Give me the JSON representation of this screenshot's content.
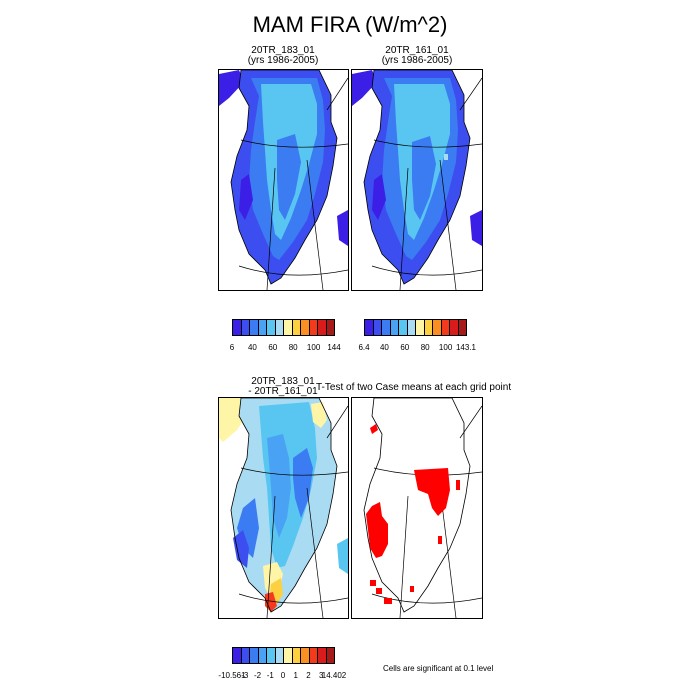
{
  "figure": {
    "title": "MAM FIRA (W/m^2)"
  },
  "panels": {
    "case1": {
      "line1": "20TR_183_01",
      "line2": "(yrs 1986-2005)"
    },
    "case2": {
      "line1": "20TR_161_01",
      "line2": "(yrs 1986-2005)"
    },
    "diff": {
      "line1": "20TR_183_01",
      "line2": "- 20TR_161_01"
    },
    "ttest": {
      "title": "T-Test of two Case means at each grid point"
    }
  },
  "colorbars": {
    "case1": {
      "labels": [
        "6",
        "40",
        "60",
        "80",
        "100",
        "144"
      ],
      "colors": [
        "#3b1fe6",
        "#3d4ef0",
        "#3b7cf2",
        "#4aa2f5",
        "#59c6f2",
        "#a9dcf2",
        "#fff5a6",
        "#fdd041",
        "#fb8f21",
        "#f43a1c",
        "#d81b1b",
        "#a61a1a"
      ]
    },
    "case2": {
      "labels": [
        "6.4",
        "40",
        "60",
        "80",
        "100",
        "143.1"
      ],
      "colors": [
        "#3b1fe6",
        "#3d4ef0",
        "#3b7cf2",
        "#4aa2f5",
        "#59c6f2",
        "#a9dcf2",
        "#fff5a6",
        "#fdd041",
        "#fb8f21",
        "#f43a1c",
        "#d81b1b",
        "#a61a1a"
      ]
    },
    "diff": {
      "labels": [
        "-10.561",
        "-3",
        "-2",
        "-1",
        "0",
        "1",
        "2",
        "3",
        "14.402"
      ],
      "colors": [
        "#3b1fe6",
        "#3d4ef0",
        "#3b7cf2",
        "#4aa2f5",
        "#59c6f2",
        "#a9dcf2",
        "#fff5a6",
        "#fdd041",
        "#fb8f21",
        "#f43a1c",
        "#d81b1b",
        "#a61a1a"
      ]
    }
  },
  "footnote": "Cells are significant at 0.1 level",
  "chart_data": [
    {
      "type": "heatmap",
      "title": "20TR_183_01 (yrs 1986-2005)",
      "region": "Greenland",
      "colorbar": "case1",
      "value_range": [
        6,
        144
      ]
    },
    {
      "type": "heatmap",
      "title": "20TR_161_01 (yrs 1986-2005)",
      "region": "Greenland",
      "colorbar": "case2",
      "value_range": [
        6.4,
        143.1
      ]
    },
    {
      "type": "heatmap",
      "title": "20TR_183_01 - 20TR_161_01",
      "region": "Greenland",
      "colorbar": "diff",
      "value_range": [
        -10.561,
        14.402
      ]
    },
    {
      "type": "heatmap",
      "title": "T-Test of two Case means at each grid point",
      "region": "Greenland",
      "significant_color": "#ff0000"
    }
  ]
}
